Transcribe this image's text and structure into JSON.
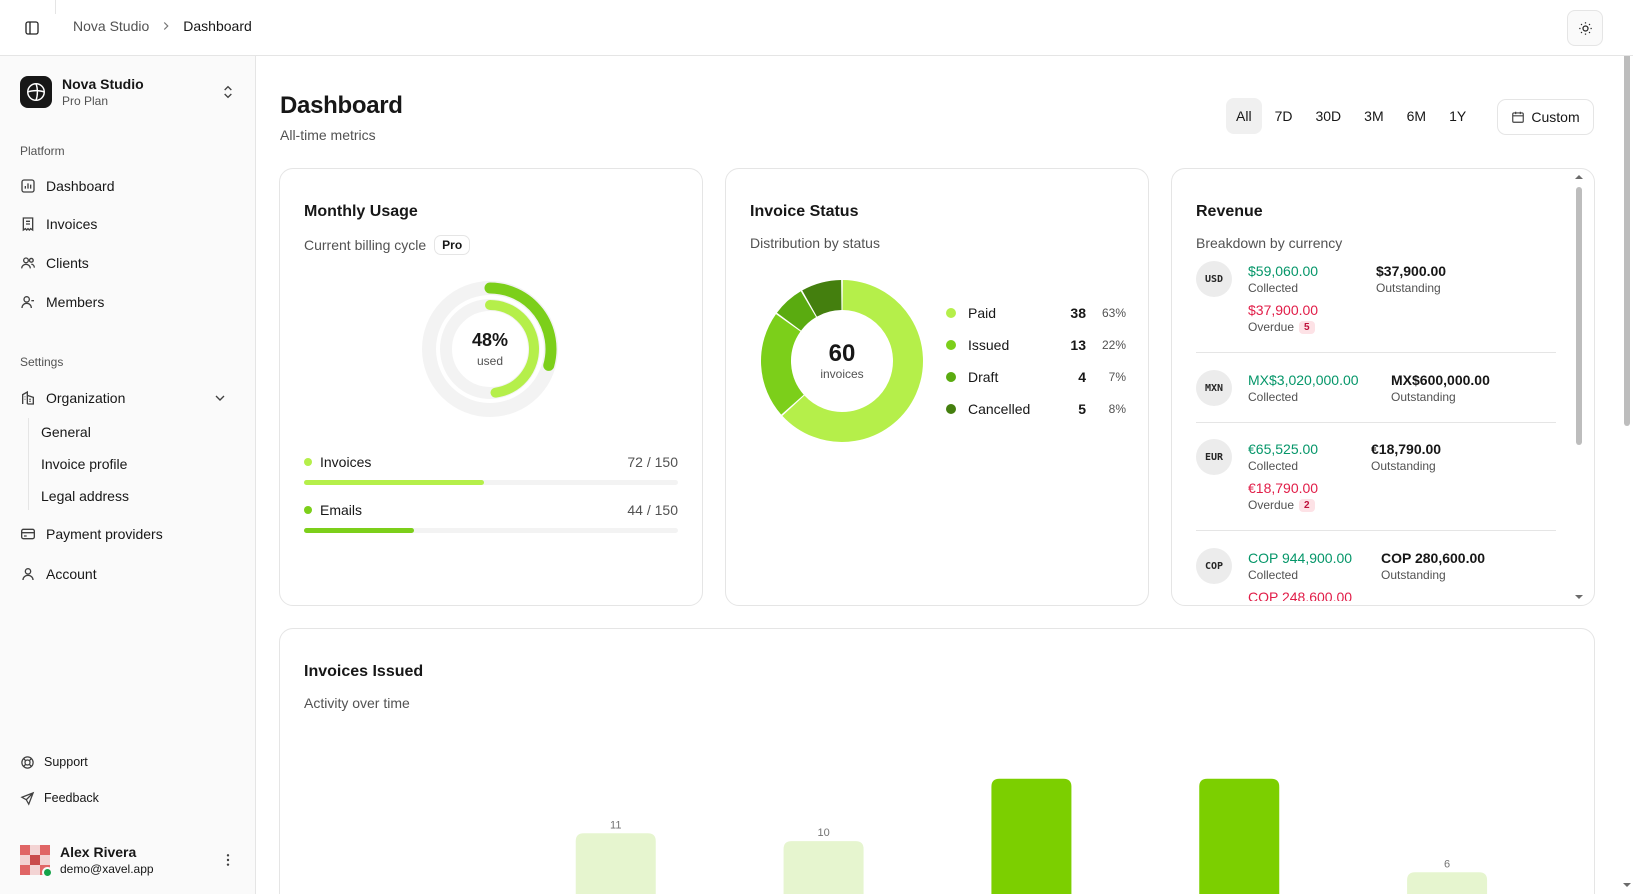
{
  "header": {
    "breadcrumb_root": "Nova Studio",
    "breadcrumb_current": "Dashboard"
  },
  "sidebar": {
    "org_name": "Nova Studio",
    "org_plan": "Pro Plan",
    "platform_label": "Platform",
    "platform_items": [
      {
        "label": "Dashboard",
        "icon": "chart-icon"
      },
      {
        "label": "Invoices",
        "icon": "receipt-icon"
      },
      {
        "label": "Clients",
        "icon": "users-icon"
      },
      {
        "label": "Members",
        "icon": "members-icon"
      }
    ],
    "settings_label": "Settings",
    "organization_label": "Organization",
    "organization_sub": [
      "General",
      "Invoice profile",
      "Legal address"
    ],
    "payment_label": "Payment providers",
    "account_label": "Account",
    "support_label": "Support",
    "feedback_label": "Feedback",
    "user_name": "Alex Rivera",
    "user_email": "demo@xavel.app"
  },
  "page": {
    "title": "Dashboard",
    "subtitle": "All-time metrics",
    "ranges": [
      "All",
      "7D",
      "30D",
      "3M",
      "6M",
      "1Y"
    ],
    "active_range": "All",
    "custom_label": "Custom"
  },
  "usage": {
    "title": "Monthly Usage",
    "subtitle": "Current billing cycle",
    "badge": "Pro",
    "percent_label": "48%",
    "used_label": "used",
    "meters": [
      {
        "name": "Invoices",
        "value_label": "72 / 150",
        "used": 72,
        "total": 150,
        "color": "#b5ef4a"
      },
      {
        "name": "Emails",
        "value_label": "44 / 150",
        "used": 44,
        "total": 150,
        "color": "#7ccf1a"
      }
    ]
  },
  "invoice_status": {
    "title": "Invoice Status",
    "subtitle": "Distribution by status",
    "total": "60",
    "total_label": "invoices",
    "items": [
      {
        "name": "Paid",
        "count": 38,
        "pct": "63%",
        "color": "#b5ef4a"
      },
      {
        "name": "Issued",
        "count": 13,
        "pct": "22%",
        "color": "#7ccf1a"
      },
      {
        "name": "Draft",
        "count": 4,
        "pct": "7%",
        "color": "#5aab10"
      },
      {
        "name": "Cancelled",
        "count": 5,
        "pct": "8%",
        "color": "#447f0e"
      }
    ]
  },
  "revenue": {
    "title": "Revenue",
    "subtitle": "Breakdown by currency",
    "collected_label": "Collected",
    "outstanding_label": "Outstanding",
    "overdue_label": "Overdue",
    "items": [
      {
        "code": "USD",
        "collected": "$59,060.00",
        "outstanding": "$37,900.00",
        "overdue": "$37,900.00",
        "overdue_count": "5"
      },
      {
        "code": "MXN",
        "collected": "MX$3,020,000.00",
        "outstanding": "MX$600,000.00"
      },
      {
        "code": "EUR",
        "collected": "€65,525.00",
        "outstanding": "€18,790.00",
        "overdue": "€18,790.00",
        "overdue_count": "2"
      },
      {
        "code": "COP",
        "collected": "COP 944,900.00",
        "outstanding": "COP 280,600.00",
        "overdue": "COP 248,600.00"
      }
    ]
  },
  "chart_data": {
    "type": "bar",
    "title": "Invoices Issued",
    "subtitle": "Activity over time",
    "values": [
      null,
      11,
      10,
      18,
      18,
      6
    ],
    "labels": [
      "",
      "11",
      "10",
      "",
      "",
      "6"
    ],
    "highlight": [
      false,
      false,
      false,
      true,
      true,
      false
    ],
    "colors": {
      "normal": "#e6f5cf",
      "highlight": "#7ccf00"
    }
  }
}
